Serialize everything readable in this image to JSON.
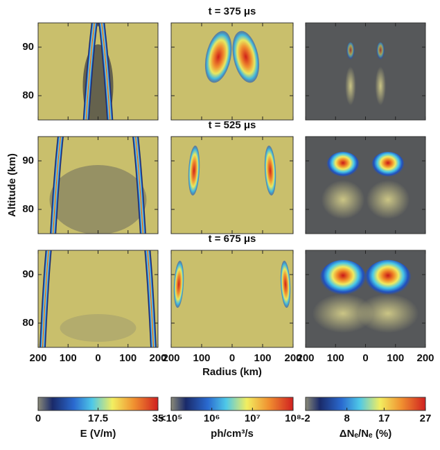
{
  "figure": {
    "rows": [
      {
        "title": "t = 375 μs"
      },
      {
        "title": "t = 525 μs"
      },
      {
        "title": "t = 675 μs"
      }
    ],
    "y_axis": {
      "label": "Altitude (km)",
      "lim": [
        75,
        95
      ],
      "ticks": [
        80,
        90
      ]
    },
    "x_axis": {
      "label": "Radius (km)",
      "lim": [
        -200,
        200
      ],
      "ticks": [
        {
          "value": -200,
          "label": "200"
        },
        {
          "value": -100,
          "label": "100"
        },
        0,
        100,
        200
      ]
    },
    "colorbars": [
      {
        "label": "E (V/m)",
        "lim": [
          0,
          35
        ],
        "ticks": [
          0,
          17.5,
          35
        ]
      },
      {
        "label": "ph/cm³/s",
        "lim": [
          100000,
          100000000
        ],
        "log": true,
        "ticks": [
          {
            "value": 100000,
            "label": "<10⁵"
          },
          {
            "value": 1000000,
            "label": "10⁶"
          },
          {
            "value": 10000000,
            "label": "10⁷"
          },
          {
            "value": 100000000,
            "label": "10⁸"
          }
        ]
      },
      {
        "label": "ΔNₑ/Nₑ (%)",
        "lim": [
          -2,
          27
        ],
        "ticks": [
          -2,
          8,
          17,
          27
        ]
      }
    ]
  }
}
